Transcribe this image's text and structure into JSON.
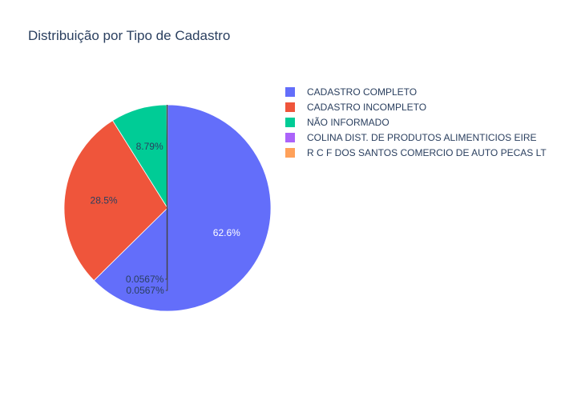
{
  "chart_data": {
    "type": "pie",
    "title": "Distribuição por Tipo de Cadastro",
    "labels": [
      "CADASTRO COMPLETO",
      "CADASTRO INCOMPLETO",
      "NÃO INFORMADO",
      "COLINA DIST. DE PRODUTOS ALIMENTICIOS EIRE",
      "R C F DOS SANTOS COMERCIO DE AUTO PECAS LT"
    ],
    "values": [
      62.6,
      28.5,
      8.79,
      0.0567,
      0.0567
    ],
    "text_labels": [
      "62.6%",
      "28.5%",
      "8.79%",
      "0.0567%",
      "0.0567%"
    ],
    "colors": [
      "#636efa",
      "#ef553b",
      "#00cc96",
      "#ab63fa",
      "#ffa15a"
    ],
    "legend_position": "right",
    "direction": "clockwise",
    "start_angle": "top"
  }
}
